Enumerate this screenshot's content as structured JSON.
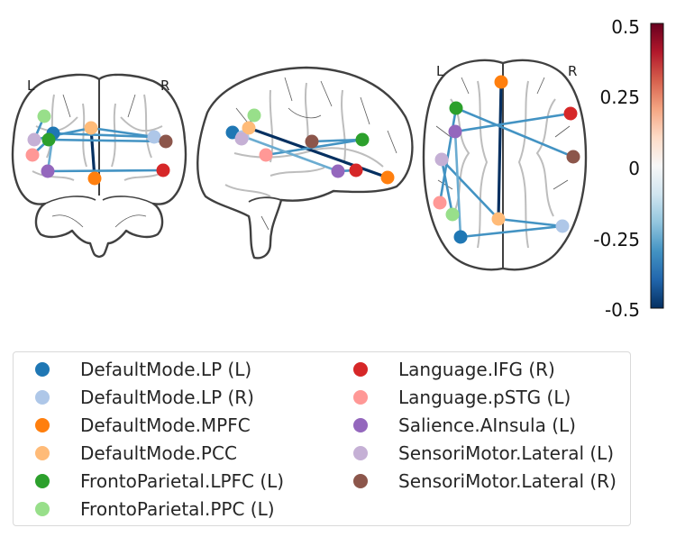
{
  "views": {
    "coronal": {
      "left_label": "L",
      "right_label": "R"
    },
    "axial": {
      "left_label": "L",
      "right_label": "R"
    }
  },
  "colorbar": {
    "ticks": [
      "0.5",
      "0.25",
      "0",
      "-0.25",
      "-0.5"
    ],
    "range": [
      -0.5,
      0.5
    ],
    "colormap": "RdBu_r",
    "stops": [
      "#053061",
      "#2166ac",
      "#4393c3",
      "#92c5de",
      "#d1e5f0",
      "#f7f7f7",
      "#fddbc7",
      "#f4a582",
      "#d6604d",
      "#b2182b",
      "#67001f"
    ]
  },
  "nodes": [
    {
      "id": "DefaultMode.LP (L)",
      "color": "#1f77b4"
    },
    {
      "id": "DefaultMode.LP (R)",
      "color": "#aec7e8"
    },
    {
      "id": "DefaultMode.MPFC",
      "color": "#ff7f0e"
    },
    {
      "id": "DefaultMode.PCC",
      "color": "#ffbb78"
    },
    {
      "id": "FrontoParietal.LPFC (L)",
      "color": "#2ca02c"
    },
    {
      "id": "FrontoParietal.PPC (L)",
      "color": "#98df8a"
    },
    {
      "id": "Language.IFG (R)",
      "color": "#d62728"
    },
    {
      "id": "Language.pSTG (L)",
      "color": "#ff9896"
    },
    {
      "id": "Salience.AInsula (L)",
      "color": "#9467bd"
    },
    {
      "id": "SensoriMotor.Lateral (L)",
      "color": "#c5b0d5"
    },
    {
      "id": "SensoriMotor.Lateral (R)",
      "color": "#8c564b"
    }
  ],
  "edges": [
    {
      "source": "DefaultMode.MPFC",
      "target": "DefaultMode.PCC",
      "weight": -0.5
    },
    {
      "source": "FrontoParietal.LPFC (L)",
      "target": "SensoriMotor.Lateral (R)",
      "weight": -0.3
    },
    {
      "source": "DefaultMode.LP (L)",
      "target": "DefaultMode.LP (R)",
      "weight": -0.3
    },
    {
      "source": "Salience.AInsula (L)",
      "target": "Language.IFG (R)",
      "weight": -0.3
    },
    {
      "source": "Language.pSTG (L)",
      "target": "FrontoParietal.LPFC (L)",
      "weight": -0.3
    },
    {
      "source": "DefaultMode.PCC",
      "target": "DefaultMode.LP (R)",
      "weight": -0.3
    },
    {
      "source": "SensoriMotor.Lateral (L)",
      "target": "FrontoParietal.PPC (L)",
      "weight": -0.3
    },
    {
      "source": "DefaultMode.PCC",
      "target": "SensoriMotor.Lateral (L)",
      "weight": -0.3
    },
    {
      "source": "Salience.AInsula (L)",
      "target": "DefaultMode.LP (L)",
      "weight": -0.25
    }
  ]
}
